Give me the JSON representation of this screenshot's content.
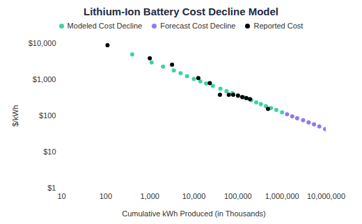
{
  "chart_data": {
    "type": "scatter",
    "title": "Lithium-Ion Battery Cost Decline Model",
    "x_label": "Cumulative kWh Produced (in Thousands)",
    "y_label": "$/kWh",
    "log": true,
    "grid": false,
    "legend": "top",
    "xlim": [
      10,
      10000000
    ],
    "xticks": [
      10,
      100,
      {
        "value": 1000,
        "label": "1,000"
      },
      {
        "value": 10000,
        "label": "10,000"
      },
      {
        "value": 100000,
        "label": "100,000"
      },
      {
        "value": 1000000,
        "label": "1,000,000"
      },
      {
        "value": 10000000,
        "label": "10,000,000"
      }
    ],
    "ylim": [
      1,
      10000
    ],
    "yticks": [
      {
        "value": 1,
        "label": "$1"
      },
      {
        "value": 10,
        "label": "$10"
      },
      {
        "value": 100,
        "label": "$100"
      },
      {
        "value": 1000,
        "label": "$1,000"
      },
      {
        "value": 10000,
        "label": "$10,000"
      }
    ],
    "series": [
      {
        "name": "Modeled Cost Decline",
        "color": "#3cd4a0",
        "marker": "circle",
        "x": [
          400,
          1100,
          2000,
          3500,
          5000,
          7000,
          10000,
          14000,
          19000,
          27000,
          40000,
          55000,
          75000,
          100000,
          140000,
          200000,
          260000,
          330000,
          430000,
          560000,
          740000,
          1000000
        ],
        "values": [
          5000,
          3000,
          2300,
          1800,
          1500,
          1250,
          1050,
          900,
          780,
          670,
          560,
          480,
          420,
          370,
          320,
          270,
          235,
          210,
          185,
          165,
          145,
          125
        ]
      },
      {
        "name": "Forecast Cost Decline",
        "color": "#8b7cf0",
        "marker": "circle",
        "x": [
          1300000,
          1700000,
          2200000,
          3000000,
          4000000,
          5300000,
          7000000,
          9500000
        ],
        "values": [
          110,
          97,
          86,
          76,
          66,
          58,
          51,
          43
        ]
      },
      {
        "name": "Reported Cost",
        "color": "#000000",
        "marker": "circle",
        "x": [
          110,
          1000,
          3200,
          12600,
          23000,
          39000,
          62000,
          78000,
          100000,
          125000,
          155000,
          187000,
          480000
        ],
        "values": [
          9000,
          3900,
          2600,
          1100,
          800,
          380,
          380,
          380,
          360,
          330,
          310,
          290,
          155
        ]
      }
    ]
  }
}
